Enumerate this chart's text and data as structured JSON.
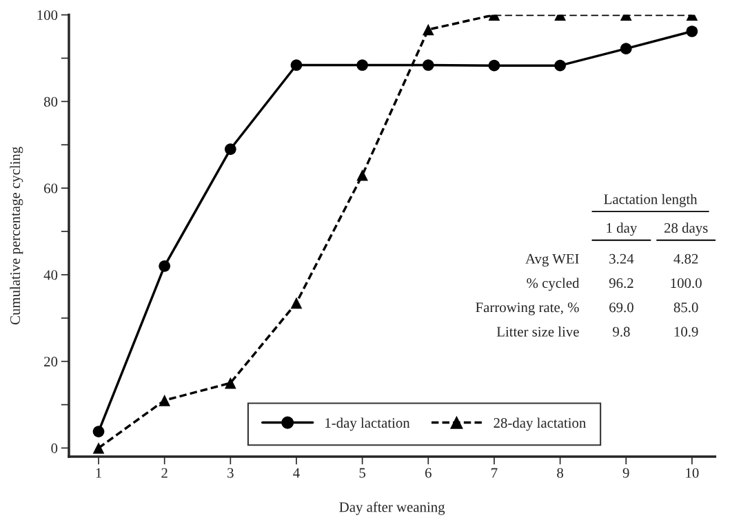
{
  "chart_data": {
    "type": "line",
    "xlabel": "Day after weaning",
    "ylabel": "Cumulative percentage cycling",
    "x": [
      1,
      2,
      3,
      4,
      5,
      6,
      7,
      8,
      9,
      10
    ],
    "series": [
      {
        "name": "1-day lactation",
        "color": "#000000",
        "marker": "circle",
        "line_style": "solid",
        "values": [
          3.8,
          42,
          69,
          88.4,
          88.4,
          88.4,
          88.3,
          88.3,
          92.2,
          96.2
        ]
      },
      {
        "name": "28-day lactation",
        "color": "#000000",
        "marker": "triangle",
        "line_style": "dashed",
        "values": [
          0,
          11,
          15,
          33.5,
          63,
          96.6,
          100,
          100,
          100,
          100
        ]
      }
    ],
    "xlim": [
      0.55,
      10.35
    ],
    "ylim": [
      -2,
      100
    ],
    "xticks": [
      1,
      2,
      3,
      4,
      5,
      6,
      7,
      8,
      9,
      10
    ],
    "yticks": [
      0,
      {
        "value": 10,
        "label": null
      },
      20,
      {
        "value": 30,
        "label": null
      },
      40,
      {
        "value": 50,
        "label": null
      },
      60,
      {
        "value": 70,
        "label": null
      },
      80,
      {
        "value": 90,
        "label": null
      },
      100
    ],
    "grid": false,
    "legend": "bottom",
    "annotations": [
      "Lactation length",
      "1 day",
      "28 days",
      "Avg WEI",
      "3.24",
      "4.82",
      "% cycled",
      "96.2",
      "100.0",
      "Farrowing rate, %",
      "69.0",
      "85.0",
      "Litter size live",
      "9.8",
      "10.9"
    ]
  }
}
